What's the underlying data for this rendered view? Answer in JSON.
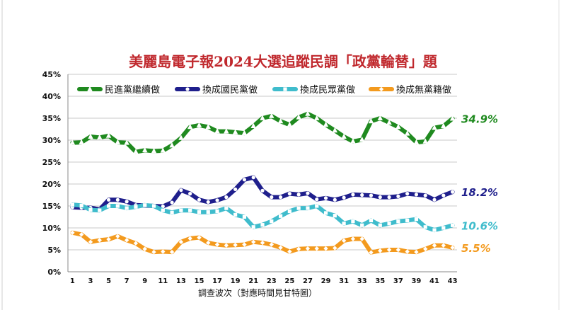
{
  "chart_data": {
    "type": "line",
    "title": "美麗島電子報2024大選追蹤民調「政黨輪替」題",
    "xlabel": "調查波次（對應時間見甘特圖）",
    "ylabel": "",
    "ylim": [
      0,
      45
    ],
    "yticks": [
      "0%",
      "5%",
      "10%",
      "15%",
      "20%",
      "25%",
      "30%",
      "35%",
      "40%",
      "45%"
    ],
    "xticks": [
      1,
      3,
      5,
      7,
      9,
      11,
      13,
      15,
      17,
      19,
      21,
      23,
      25,
      27,
      29,
      31,
      33,
      35,
      37,
      39,
      41,
      43
    ],
    "x": [
      1,
      2,
      3,
      4,
      5,
      6,
      7,
      8,
      9,
      10,
      11,
      12,
      13,
      14,
      15,
      16,
      17,
      18,
      19,
      20,
      21,
      22,
      23,
      24,
      25,
      26,
      27,
      28,
      29,
      30,
      31,
      32,
      33,
      34,
      35,
      36,
      37,
      38,
      39,
      40,
      41,
      42,
      43
    ],
    "grid": true,
    "legend": "top",
    "series": [
      {
        "name": "民進黨繼續做",
        "color": "#1f8a1f",
        "marker": "triangle",
        "end_label": "34.9%",
        "values": [
          29.4,
          29.5,
          30.8,
          30.6,
          31.0,
          29.5,
          29.4,
          27.3,
          27.7,
          27.5,
          27.6,
          28.8,
          30.5,
          33.0,
          33.4,
          33.0,
          32.0,
          32.0,
          31.8,
          31.6,
          33.2,
          35.0,
          35.5,
          34.3,
          33.5,
          35.2,
          36.0,
          35.0,
          33.5,
          32.2,
          30.8,
          29.7,
          30.1,
          34.3,
          35.0,
          34.0,
          33.0,
          31.5,
          29.5,
          29.7,
          32.8,
          33.2,
          34.9
        ]
      },
      {
        "name": "換成國民黨做",
        "color": "#1f1f8c",
        "marker": "circle",
        "end_label": "18.2%",
        "values": [
          14.7,
          14.6,
          14.6,
          14.2,
          16.4,
          16.4,
          16.0,
          15.2,
          15.1,
          15.0,
          14.9,
          15.8,
          18.6,
          17.8,
          16.4,
          15.9,
          16.3,
          17.0,
          18.8,
          21.0,
          21.5,
          18.5,
          17.0,
          17.0,
          17.8,
          17.6,
          17.9,
          16.5,
          16.8,
          16.4,
          16.9,
          17.6,
          17.5,
          17.4,
          17.0,
          17.0,
          17.2,
          17.8,
          17.6,
          17.4,
          16.4,
          17.4,
          18.2
        ]
      },
      {
        "name": "換成民眾黨做",
        "color": "#3fbccc",
        "marker": "square",
        "end_label": "10.6%",
        "values": [
          15.3,
          15.1,
          14.1,
          14.0,
          15.0,
          15.0,
          14.5,
          14.8,
          15.2,
          15.0,
          14.0,
          13.5,
          14.0,
          14.0,
          13.6,
          13.6,
          13.8,
          14.5,
          13.0,
          12.5,
          10.2,
          10.7,
          11.5,
          12.7,
          13.8,
          14.5,
          14.5,
          15.0,
          13.4,
          12.8,
          11.0,
          11.5,
          10.6,
          11.7,
          10.6,
          11.0,
          11.5,
          11.7,
          12.0,
          10.2,
          9.5,
          10.0,
          10.6
        ]
      },
      {
        "name": "換成無黨籍做",
        "color": "#f39a1e",
        "marker": "diamond",
        "end_label": "5.5%",
        "values": [
          8.9,
          8.5,
          6.8,
          7.2,
          7.4,
          8.1,
          7.2,
          6.5,
          5.2,
          4.5,
          4.6,
          4.5,
          6.8,
          7.6,
          7.8,
          6.6,
          6.2,
          6.0,
          6.1,
          6.2,
          6.8,
          6.6,
          6.2,
          5.5,
          4.6,
          5.2,
          5.3,
          5.3,
          5.3,
          5.4,
          7.1,
          7.5,
          7.5,
          4.4,
          4.8,
          5.0,
          5.0,
          4.6,
          4.5,
          5.2,
          6.0,
          6.0,
          5.5
        ]
      }
    ]
  }
}
